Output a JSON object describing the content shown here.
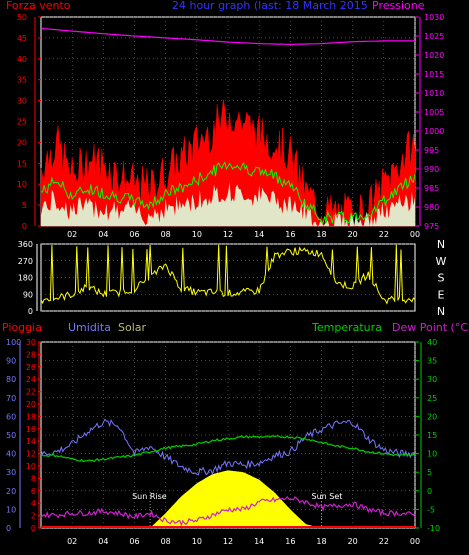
{
  "colors": {
    "wind": "#ff0000",
    "gust_fill": "#ff0000",
    "wind_avg": "#00ff00",
    "wind_min_fill": "#ddffdd",
    "pressure": "#ff00ff",
    "direction": "#ffff00",
    "rain": "#ff0000",
    "humidity": "#7777ff",
    "solar": "#ffff00",
    "temperature": "#00cc00",
    "dewpoint": "#cc22cc",
    "axis": "#ffffff",
    "grid": "#888888"
  },
  "top_panel": {
    "left_label": "Forza vento",
    "title": "24 hour graph (last: 18 March 2015",
    "right_label": "Pressione"
  },
  "dir_panel": {
    "side_labels": [
      "N",
      "W",
      "S",
      "E",
      "N"
    ]
  },
  "bottom_panel": {
    "rain_label": "Pioggia",
    "humidity_label": "Umidita",
    "solar_label": "Solar",
    "temp_label": "Temperatura",
    "dew_label": "Dew Point (°C)",
    "sunrise_label": "Sun Rise",
    "sunset_label": "Sun Set"
  },
  "chart_data": [
    {
      "type": "area",
      "title": "24 hour graph (last: 18 March 2015",
      "x_ticks": [
        "02",
        "04",
        "06",
        "08",
        "10",
        "12",
        "14",
        "16",
        "18",
        "20",
        "22",
        "00"
      ],
      "ylim": [
        0,
        50
      ],
      "y_ticks": [
        0,
        5,
        10,
        15,
        20,
        25,
        30,
        35,
        40,
        45,
        50
      ],
      "y2lim": [
        975,
        1030
      ],
      "y2_ticks": [
        975,
        980,
        985,
        990,
        995,
        1000,
        1005,
        1010,
        1015,
        1020,
        1025,
        1030
      ],
      "series": [
        {
          "name": "Forza vento",
          "axis": "left",
          "hours": [
            0,
            1,
            2,
            3,
            4,
            5,
            6,
            7,
            8,
            9,
            10,
            11,
            12,
            13,
            14,
            15,
            16,
            17,
            18,
            19,
            20,
            21,
            22,
            23,
            24
          ],
          "values": [
            14,
            20,
            12,
            16,
            15,
            12,
            10,
            9,
            13,
            16,
            20,
            23,
            27,
            25,
            22,
            20,
            17,
            8,
            4,
            3,
            3,
            4,
            10,
            15,
            20
          ]
        },
        {
          "name": "Forza vento (media)",
          "axis": "left",
          "hours": [
            0,
            1,
            2,
            3,
            4,
            5,
            6,
            7,
            8,
            9,
            10,
            11,
            12,
            13,
            14,
            15,
            16,
            17,
            18,
            19,
            20,
            21,
            22,
            23,
            24
          ],
          "values": [
            8,
            11,
            7,
            9,
            8,
            7,
            6,
            5,
            8,
            9,
            11,
            13,
            15,
            14,
            13,
            12,
            10,
            5,
            2,
            2,
            2,
            3,
            6,
            9,
            12
          ]
        },
        {
          "name": "Pressione",
          "axis": "right",
          "hours": [
            0,
            2,
            4,
            6,
            8,
            10,
            12,
            14,
            16,
            18,
            20,
            22,
            24
          ],
          "values": [
            1027,
            1026.3,
            1025.6,
            1025,
            1024.5,
            1024,
            1023.4,
            1023,
            1022.8,
            1023,
            1023.5,
            1023.7,
            1023.7
          ]
        }
      ]
    },
    {
      "type": "line",
      "title": "",
      "ylim": [
        0,
        360
      ],
      "y_ticks": [
        0,
        90,
        180,
        270,
        360
      ],
      "series": [
        {
          "name": "",
          "hours": [
            0,
            1,
            2,
            3,
            4,
            5,
            6,
            7,
            8,
            9,
            10,
            11,
            12,
            13,
            14,
            15,
            16,
            17,
            18,
            19,
            20,
            21,
            22,
            23,
            24
          ],
          "values": [
            60,
            70,
            90,
            130,
            90,
            100,
            120,
            180,
            250,
            120,
            100,
            100,
            95,
            100,
            110,
            300,
            320,
            320,
            310,
            150,
            130,
            200,
            60,
            60,
            70
          ]
        }
      ]
    },
    {
      "type": "line",
      "title": "",
      "ylim_humidity": [
        0,
        100
      ],
      "humidity_ticks": [
        0,
        10,
        20,
        30,
        40,
        50,
        60,
        70,
        80,
        90,
        100
      ],
      "ylim_rain": [
        0,
        30
      ],
      "rain_ticks": [
        0,
        2,
        4,
        6,
        8,
        10,
        12,
        14,
        16,
        18,
        20,
        22,
        24,
        26,
        28,
        30
      ],
      "ylim_temp": [
        -10,
        40
      ],
      "temp_ticks": [
        -10,
        -5,
        0,
        5,
        10,
        15,
        20,
        25,
        30,
        35,
        40
      ],
      "sunrise_hour": 7,
      "sunset_hour": 18,
      "series": [
        {
          "name": "Umidita",
          "axis": "humidity",
          "hours": [
            0,
            1,
            2,
            3,
            4,
            5,
            6,
            7,
            8,
            9,
            10,
            11,
            12,
            13,
            14,
            15,
            16,
            17,
            18,
            19,
            20,
            21,
            22,
            23,
            24
          ],
          "values": [
            40,
            41,
            45,
            52,
            57,
            55,
            40,
            44,
            38,
            33,
            30,
            31,
            35,
            34,
            35,
            39,
            41,
            49,
            53,
            56,
            57,
            48,
            42,
            40,
            40
          ]
        },
        {
          "name": "Temperatura",
          "axis": "temp",
          "hours": [
            0,
            1,
            2,
            3,
            4,
            5,
            6,
            7,
            8,
            9,
            10,
            11,
            12,
            13,
            14,
            15,
            16,
            17,
            18,
            19,
            20,
            21,
            22,
            23,
            24
          ],
          "values": [
            9.5,
            9.5,
            8.5,
            8.0,
            8.5,
            9.0,
            9.5,
            10.5,
            11.5,
            12.0,
            12.5,
            13.5,
            14.0,
            14.5,
            14.5,
            14.5,
            14.5,
            14.0,
            13.0,
            12.0,
            11.5,
            10.5,
            10.0,
            9.5,
            9.5
          ]
        },
        {
          "name": "Dew Point",
          "axis": "temp",
          "hours": [
            0,
            1,
            2,
            3,
            4,
            5,
            6,
            7,
            8,
            9,
            10,
            11,
            12,
            13,
            14,
            15,
            16,
            17,
            18,
            19,
            20,
            21,
            22,
            23,
            24
          ],
          "values": [
            -6.5,
            -6.5,
            -6.0,
            -6.0,
            -5.5,
            -6.0,
            -7.0,
            -6.0,
            -8.0,
            -8.5,
            -8.0,
            -6.5,
            -5.0,
            -5.0,
            -3.0,
            -2.5,
            -2.0,
            -3.0,
            -4.5,
            -4.0,
            -3.5,
            -5.0,
            -6.0,
            -6.0,
            -6.5
          ]
        },
        {
          "name": "Solar",
          "axis": "humidity",
          "hours": [
            7,
            8,
            9,
            10,
            11,
            12,
            13,
            14,
            15,
            16,
            17,
            18
          ],
          "values": [
            0,
            8,
            17,
            24,
            29,
            31,
            30,
            26,
            19,
            10,
            2,
            0
          ]
        },
        {
          "name": "Pioggia",
          "axis": "rain",
          "hours": [
            0,
            24
          ],
          "values": [
            0,
            0
          ]
        }
      ]
    }
  ]
}
